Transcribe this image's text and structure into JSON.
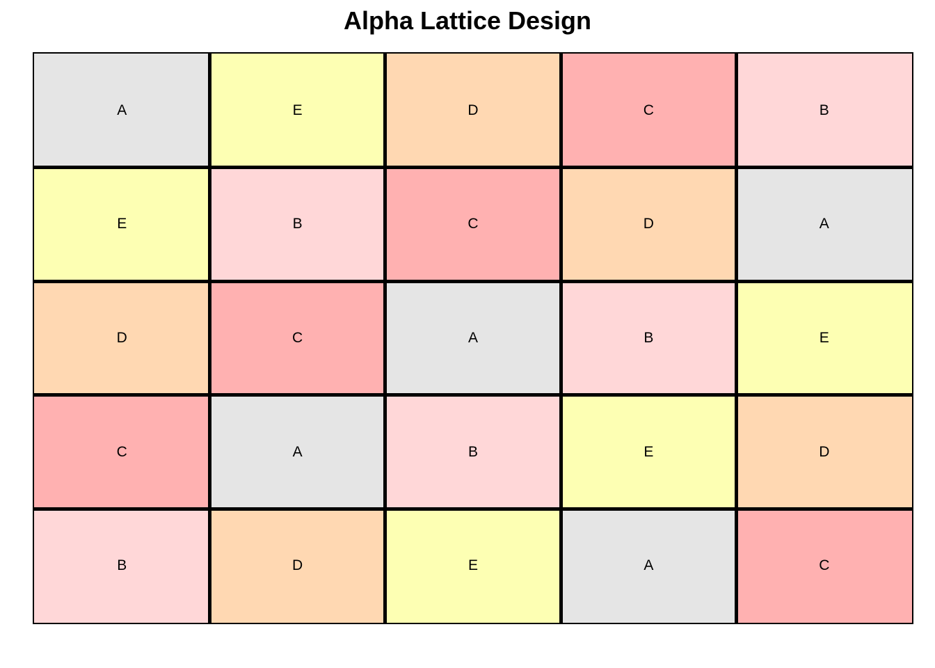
{
  "title": "Alpha Lattice Design",
  "treatment_colors": {
    "A": "#e5e5e5",
    "B": "#ffd7d8",
    "C": "#ffb1b1",
    "D": "#ffd8b2",
    "E": "#fdffb3"
  },
  "rows": [
    [
      "A",
      "E",
      "D",
      "C",
      "B"
    ],
    [
      "E",
      "B",
      "C",
      "D",
      "A"
    ],
    [
      "D",
      "C",
      "A",
      "B",
      "E"
    ],
    [
      "C",
      "A",
      "B",
      "E",
      "D"
    ],
    [
      "B",
      "D",
      "E",
      "A",
      "C"
    ]
  ]
}
